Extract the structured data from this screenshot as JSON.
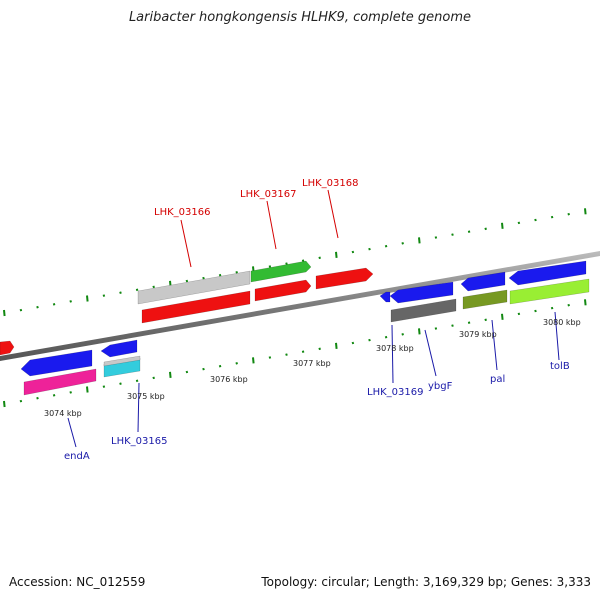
{
  "title": "Laribacter hongkongensis HLHK9, complete genome",
  "footer": {
    "accession": "Accession: NC_012559",
    "summary": "Topology: circular; Length: 3,169,329 bp; Genes: 3,333"
  },
  "scale_labels": [
    {
      "id": "3074",
      "text": "3074 kbp"
    },
    {
      "id": "3075",
      "text": "3075 kbp"
    },
    {
      "id": "3076",
      "text": "3076 kbp"
    },
    {
      "id": "3077",
      "text": "3077 kbp"
    },
    {
      "id": "3078",
      "text": "3078 kbp"
    },
    {
      "id": "3079",
      "text": "3079 kbp"
    },
    {
      "id": "3080",
      "text": "3080 kbp"
    }
  ],
  "gene_labels": [
    {
      "id": "lhk03166",
      "text": "LHK_03166",
      "color": "#d40000"
    },
    {
      "id": "lhk03167",
      "text": "LHK_03167",
      "color": "#d40000"
    },
    {
      "id": "lhk03168",
      "text": "LHK_03168",
      "color": "#d40000"
    },
    {
      "id": "lhk03165",
      "text": "LHK_03165",
      "color": "#1a1aa8"
    },
    {
      "id": "enda",
      "text": "endA",
      "color": "#1a1aa8"
    },
    {
      "id": "lhk03169",
      "text": "LHK_03169",
      "color": "#1a1aa8"
    },
    {
      "id": "ybgf",
      "text": "ybgF",
      "color": "#1a1aa8"
    },
    {
      "id": "pal",
      "text": "pal",
      "color": "#1a1aa8"
    },
    {
      "id": "tolb",
      "text": "tolB",
      "color": "#1a1aa8"
    }
  ],
  "colors": {
    "red_gene": "#ee1111",
    "blue_gene": "#1a1aee",
    "green_gene": "#33bb33",
    "magenta_gene": "#ee2299",
    "cyan_gene": "#33ccdd",
    "olive_gene": "#779922",
    "lime_gene": "#99ee33",
    "gray_gene": "#c8c8c8",
    "dark_gray_gene": "#666666",
    "backbone": "#888888",
    "tick": "#118811"
  }
}
